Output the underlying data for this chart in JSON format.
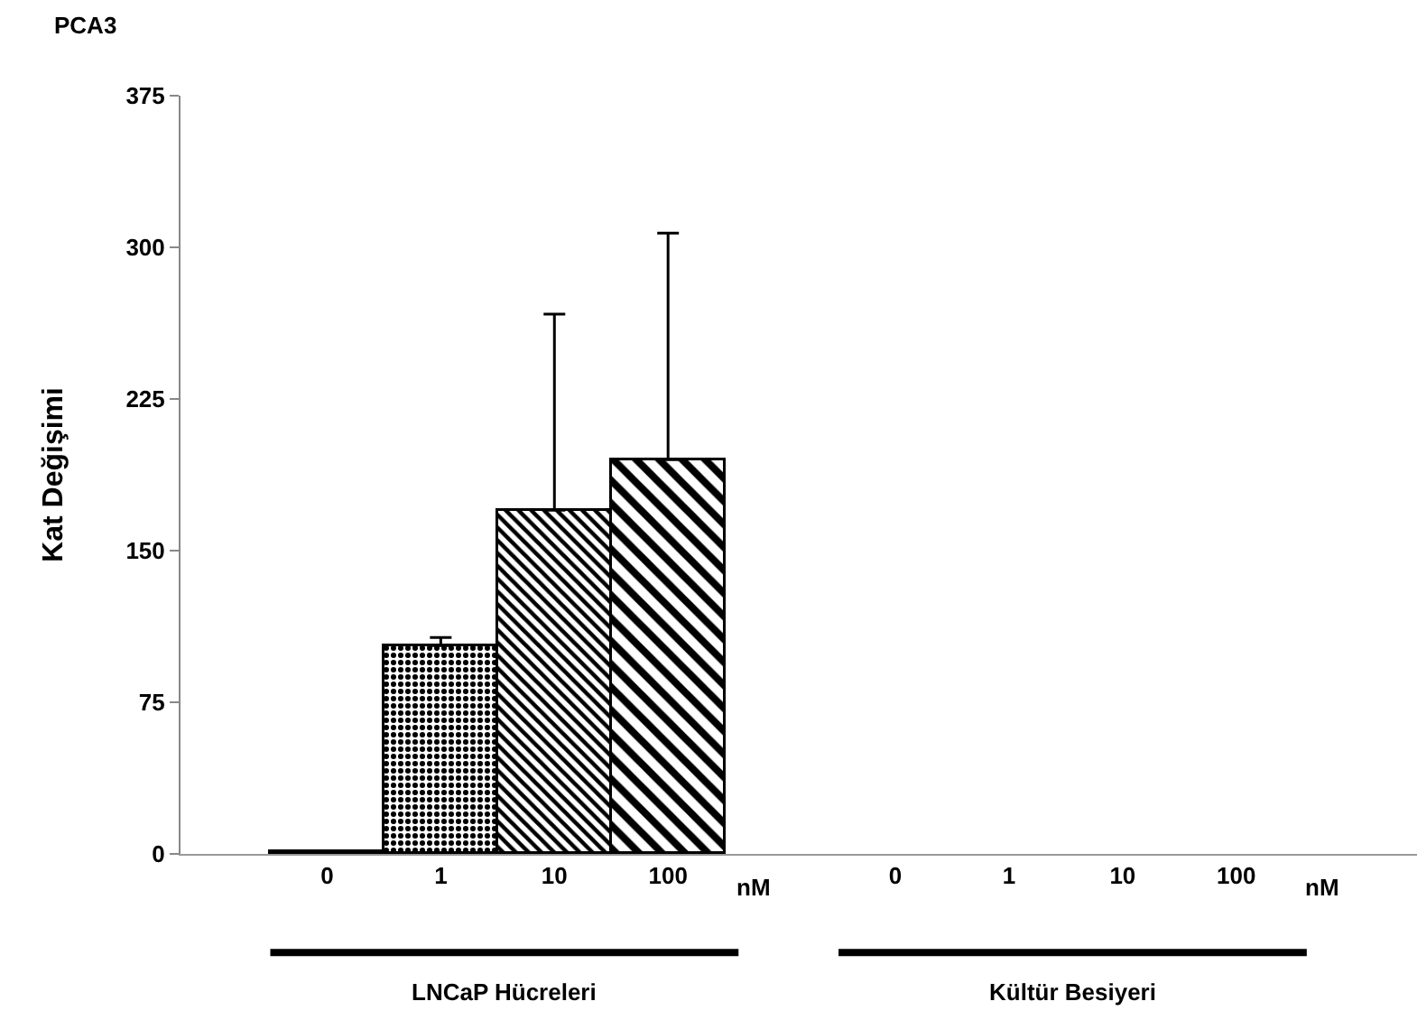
{
  "chart_data": {
    "type": "bar",
    "title": "PCA3",
    "ylabel": "Kat Değişimi",
    "categories": [
      "0",
      "1",
      "10",
      "100",
      "0",
      "1",
      "10",
      "100"
    ],
    "values": [
      1,
      103,
      170,
      195,
      null,
      null,
      null,
      null
    ],
    "errors": [
      null,
      [
        103,
        107
      ],
      [
        170,
        267
      ],
      [
        195,
        307
      ],
      null,
      null,
      null,
      null
    ],
    "color": "#000000",
    "ylim": [
      0,
      375
    ],
    "yticks": [
      0,
      75,
      150,
      225,
      300,
      375
    ],
    "annotations": [
      "nM",
      "nM",
      "LNCaP Hücreleri",
      "Kültür Besiyeri"
    ]
  }
}
